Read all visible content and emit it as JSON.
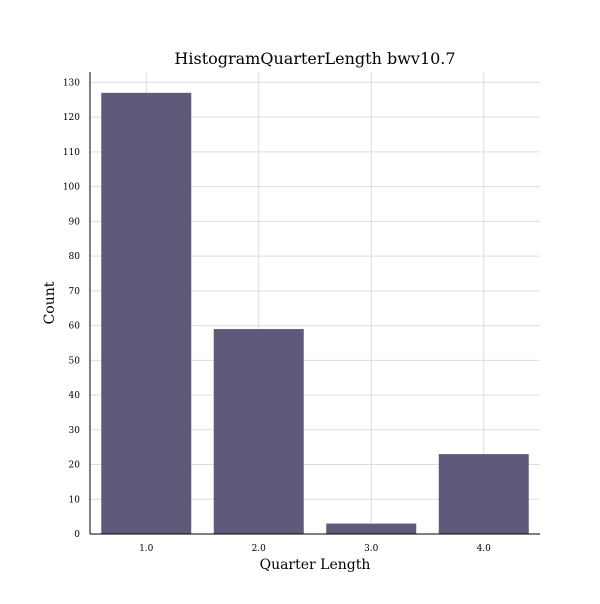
{
  "chart_data": {
    "type": "bar",
    "title": "HistogramQuarterLength bwv10.7",
    "xlabel": "Quarter Length",
    "ylabel": "Count",
    "categories": [
      "1.0",
      "2.0",
      "3.0",
      "4.0"
    ],
    "values": [
      127,
      59,
      3,
      23
    ],
    "ylim": [
      0,
      133
    ],
    "yticks": [
      0,
      10,
      20,
      30,
      40,
      50,
      60,
      70,
      80,
      90,
      100,
      110,
      120,
      130
    ],
    "grid": true,
    "bar_color": "#5f5a7a",
    "grid_color": "#dddddd"
  }
}
